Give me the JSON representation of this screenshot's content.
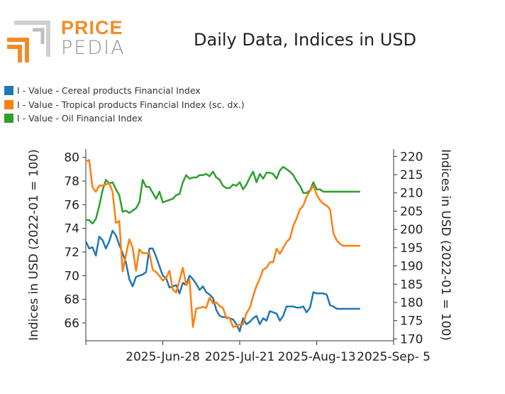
{
  "brand": {
    "line1": "PRICE",
    "line2": "PEDIA"
  },
  "colors": {
    "cereal": "#1f77b4",
    "tropical": "#ff7f0e",
    "oil": "#2ca02c",
    "logo_orange": "#f28c28",
    "logo_gray": "#8f8f8f"
  },
  "chart_data": {
    "type": "line",
    "title": "Daily Data, Indices in USD",
    "ylabel": "Indices in USD (2022-01 = 100)",
    "y2label": "Indices in USD (2022-01 = 100)",
    "ylim": [
      64.5,
      80.7
    ],
    "y2lim": [
      169.5,
      222
    ],
    "yticks": [
      66,
      68,
      70,
      72,
      74,
      76,
      78,
      80
    ],
    "y2ticks": [
      170,
      175,
      180,
      185,
      190,
      195,
      200,
      205,
      210,
      215,
      220
    ],
    "xlim": [
      0,
      82
    ],
    "xticks": [
      {
        "x": 0,
        "label": ""
      },
      {
        "x": 23,
        "label": "2025-Jun-28"
      },
      {
        "x": 46,
        "label": "2025-Jul-21"
      },
      {
        "x": 69,
        "label": "2025-Aug-13"
      },
      {
        "x": 92,
        "label": "2025-Sep- 5"
      }
    ],
    "grid": false,
    "legend_position": "top-left",
    "series": [
      {
        "name": "I - Value - Cereal products Financial Index",
        "axis": "left",
        "color": "#1f77b4",
        "x": [
          0,
          1,
          2,
          3,
          4,
          5,
          6,
          7,
          8,
          9,
          10,
          11,
          12,
          13,
          14,
          15,
          16,
          17,
          18,
          19,
          20,
          21,
          22,
          23,
          24,
          25,
          26,
          27,
          28,
          29,
          30,
          31,
          32,
          33,
          34,
          35,
          36,
          37,
          38,
          39,
          40,
          41,
          42,
          43,
          44,
          45,
          46,
          47,
          48,
          49,
          50,
          51,
          52,
          53,
          54,
          55,
          56,
          57,
          58,
          59,
          60,
          61,
          62,
          63,
          64,
          65,
          66,
          67,
          68,
          69,
          70,
          71,
          72,
          73,
          74,
          75,
          76,
          77,
          78,
          79,
          80,
          81,
          82
        ],
        "values": [
          72.9,
          72.3,
          72.4,
          71.7,
          73.3,
          73.0,
          72.3,
          72.9,
          73.8,
          73.4,
          72.6,
          71.9,
          71.1,
          69.7,
          69.1,
          69.9,
          70.0,
          70.1,
          70.3,
          72.3,
          72.3,
          71.6,
          70.8,
          70.0,
          69.8,
          69.0,
          69.1,
          69.2,
          68.5,
          69.4,
          69.2,
          70.0,
          69.7,
          69.3,
          68.8,
          69.1,
          68.6,
          68.4,
          68.1,
          67.1,
          66.6,
          66.5,
          66.5,
          66.4,
          66.3,
          65.9,
          65.3,
          66.4,
          65.9,
          66.1,
          66.4,
          66.6,
          65.9,
          66.4,
          66.2,
          67.0,
          66.9,
          66.8,
          66.2,
          66.6,
          67.4,
          67.4,
          67.4,
          67.3,
          67.3,
          67.4,
          66.9,
          67.3,
          68.6,
          68.5,
          68.5,
          68.5,
          68.4,
          67.5,
          67.4,
          67.2,
          67.2,
          67.2,
          67.2,
          67.2,
          67.2,
          67.2,
          67.2
        ]
      },
      {
        "name": "I - Value - Tropical products Financial Index (sc. dx.)",
        "axis": "right",
        "color": "#ff7f0e",
        "x": [
          0,
          1,
          2,
          3,
          4,
          5,
          6,
          7,
          8,
          9,
          10,
          11,
          12,
          13,
          14,
          15,
          16,
          17,
          18,
          19,
          20,
          21,
          22,
          23,
          24,
          25,
          26,
          27,
          28,
          29,
          30,
          31,
          32,
          33,
          34,
          35,
          36,
          37,
          38,
          39,
          40,
          41,
          42,
          43,
          44,
          45,
          46,
          47,
          48,
          49,
          50,
          51,
          52,
          53,
          54,
          55,
          56,
          57,
          58,
          59,
          60,
          61,
          62,
          63,
          64,
          65,
          66,
          67,
          68,
          69,
          70,
          71,
          72,
          73,
          74,
          75,
          76,
          77,
          78,
          79,
          80,
          81,
          82
        ],
        "values": [
          218.7,
          219.0,
          211.5,
          210.3,
          212.0,
          212.0,
          212.3,
          212.7,
          210.3,
          201.8,
          202.3,
          188.5,
          193.0,
          197.3,
          195.0,
          188.7,
          194.5,
          193.5,
          193.5,
          193.5,
          189.0,
          188.3,
          187.3,
          186.0,
          186.7,
          188.7,
          183.5,
          182.7,
          186.0,
          189.5,
          184.7,
          186.2,
          173.3,
          178.3,
          178.5,
          178.8,
          178.5,
          181.3,
          179.7,
          180.0,
          179.0,
          178.5,
          175.7,
          175.7,
          173.3,
          173.5,
          174.0,
          174.0,
          177.0,
          178.5,
          181.7,
          184.5,
          186.5,
          189.0,
          189.5,
          191.0,
          191.0,
          194.7,
          193.3,
          195.0,
          196.5,
          197.5,
          201.0,
          203.0,
          205.5,
          206.5,
          209.0,
          210.5,
          212.0,
          209.5,
          208.0,
          207.0,
          206.5,
          205.5,
          199.0,
          197.0,
          196.0,
          195.5,
          195.5,
          195.5,
          195.5,
          195.5,
          195.5
        ]
      },
      {
        "name": "I - Value - Oil Financial Index",
        "axis": "left",
        "color": "#2ca02c",
        "x": [
          0,
          1,
          2,
          3,
          4,
          5,
          6,
          7,
          8,
          9,
          10,
          11,
          12,
          13,
          14,
          15,
          16,
          17,
          18,
          19,
          20,
          21,
          22,
          23,
          24,
          25,
          26,
          27,
          28,
          29,
          30,
          31,
          32,
          33,
          34,
          35,
          36,
          37,
          38,
          39,
          40,
          41,
          42,
          43,
          44,
          45,
          46,
          47,
          48,
          49,
          50,
          51,
          52,
          53,
          54,
          55,
          56,
          57,
          58,
          59,
          60,
          61,
          62,
          63,
          64,
          65,
          66,
          67,
          68,
          69,
          70,
          71,
          72,
          73,
          74,
          75,
          76,
          77,
          78,
          79,
          80,
          81,
          82
        ],
        "values": [
          74.7,
          74.7,
          74.4,
          74.8,
          75.9,
          77.2,
          78.1,
          77.8,
          77.9,
          77.3,
          76.8,
          75.4,
          75.5,
          75.3,
          75.5,
          75.7,
          76.2,
          78.1,
          77.5,
          77.5,
          77.0,
          76.5,
          77.1,
          76.2,
          76.3,
          76.4,
          76.5,
          76.8,
          76.9,
          77.9,
          78.5,
          78.2,
          78.3,
          78.3,
          78.5,
          78.5,
          78.6,
          78.4,
          78.8,
          78.3,
          78.1,
          77.6,
          77.4,
          77.4,
          77.7,
          77.6,
          77.9,
          77.3,
          77.7,
          78.3,
          78.8,
          77.9,
          78.6,
          78.2,
          78.7,
          78.7,
          78.6,
          78.2,
          78.9,
          79.2,
          79.0,
          78.8,
          78.5,
          78.0,
          77.6,
          77.0,
          77.0,
          77.2,
          77.9,
          77.3,
          77.3,
          77.1,
          77.1,
          77.1,
          77.1,
          77.1,
          77.1,
          77.1,
          77.1,
          77.1,
          77.1,
          77.1,
          77.1
        ]
      }
    ]
  }
}
